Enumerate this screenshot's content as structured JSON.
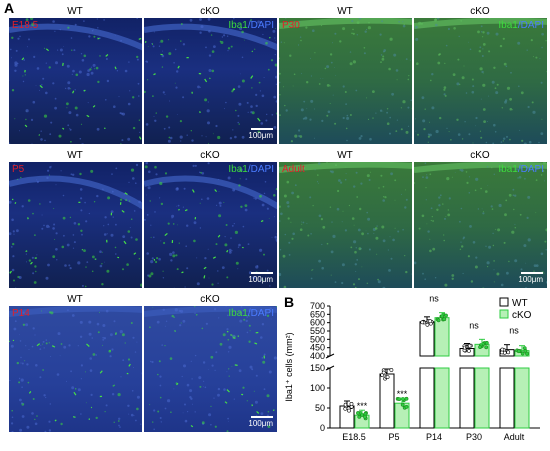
{
  "panel_a_label": "A",
  "panel_b_label": "B",
  "col_labels": {
    "wt": "WT",
    "cko": "cKO"
  },
  "stain": {
    "marker": "Iba1",
    "sep": "/",
    "counter": "DAPI"
  },
  "scale_bar": "100μm",
  "ages": {
    "e185": "E18.5",
    "p5": "P5",
    "p14": "P14",
    "p30": "P30",
    "adult": "Adult"
  },
  "colors": {
    "wt": "#000000",
    "cko": "#2ecc40",
    "cko_fill": "#b6f0b6",
    "age_label": "#e0202a",
    "dapi": "#4a7bff",
    "iba1": "#3ddc3d"
  },
  "chart_data": {
    "type": "bar",
    "ylabel": "Iba1⁺ cells (mm²)",
    "categories": [
      "E18.5",
      "P5",
      "P14",
      "P30",
      "Adult"
    ],
    "series": [
      {
        "name": "WT",
        "values": [
          55,
          135,
          605,
          445,
          438
        ]
      },
      {
        "name": "cKO",
        "values": [
          32,
          62,
          630,
          470,
          432
        ]
      }
    ],
    "y_lower_ticks": [
      0,
      50,
      100,
      150
    ],
    "y_upper_ticks": [
      400,
      450,
      500,
      550,
      600,
      650,
      700
    ],
    "y_break": [
      150,
      400
    ],
    "significance": [
      "***",
      "***",
      "ns",
      "ns",
      "ns"
    ],
    "legend": [
      "WT",
      "cKO"
    ],
    "legend_position": "top-right"
  }
}
